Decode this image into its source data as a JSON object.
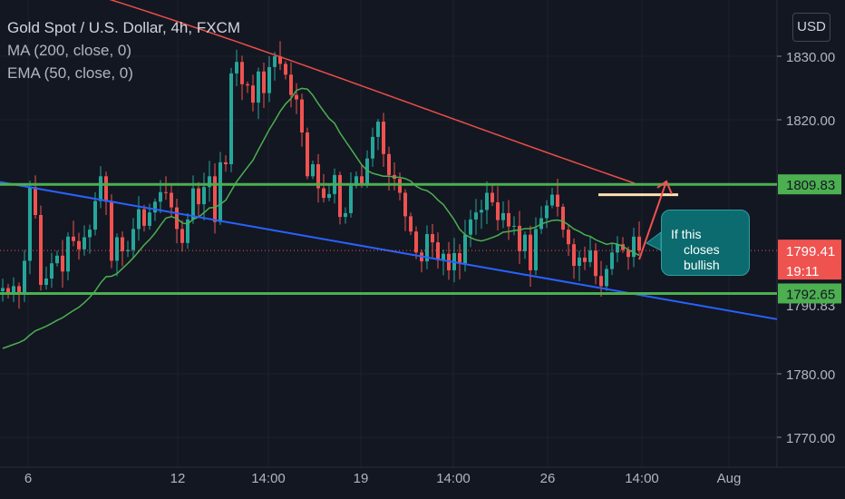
{
  "header": {
    "title": "Gold Spot / U.S. Dollar, 4h, FXCM",
    "indicator_1": "MA (200, close, 0)",
    "indicator_2": "EMA (50, close, 0)"
  },
  "currency_button": "USD",
  "annotation": {
    "line1": "If this",
    "line2": "closes bullish"
  },
  "colors": {
    "background": "#131722",
    "bull": "#26a69a",
    "bear": "#ef5350",
    "ma200": "#e94e47",
    "ema50": "#4caf50",
    "trendline": "#2962ff",
    "level": "#4caf50",
    "note_bg": "#0c6b6e"
  },
  "chart_data": {
    "type": "candlestick",
    "x_ticks": [
      "6",
      "12",
      "14:00",
      "19",
      "14:00",
      "26",
      "14:00",
      "Aug"
    ],
    "y_ticks": [
      "1830.00",
      "1820.00",
      "1780.00",
      "1770.00"
    ],
    "ylim": [
      1767.5,
      1835.5
    ],
    "n_bars": 118,
    "level_lines": [
      {
        "label": "1809.83",
        "value": 1809.83
      },
      {
        "label": "1792.65",
        "value": 1792.65
      }
    ],
    "last_price": {
      "label": "1799.41",
      "value": 1799.41,
      "countdown": "19:11"
    },
    "partial_label": "1790.83",
    "close": [
      1793.5,
      1792.8,
      1793.8,
      1792.6,
      1797.8,
      1809.4,
      1805.0,
      1794.0,
      1795.0,
      1797.4,
      1798.6,
      1796.1,
      1801.6,
      1800.9,
      1799.6,
      1801.5,
      1802.7,
      1807.2,
      1811.1,
      1807.1,
      1797.8,
      1801.5,
      1799.3,
      1799.5,
      1802.8,
      1805.9,
      1803.3,
      1805.4,
      1807.1,
      1808.6,
      1808.5,
      1806.2,
      1802.8,
      1800.6,
      1804.3,
      1809.2,
      1806.7,
      1809.4,
      1811.1,
      1803.9,
      1813.3,
      1813.0,
      1827.3,
      1829.1,
      1825.6,
      1825.4,
      1822.7,
      1827.6,
      1824.2,
      1828.3,
      1830.0,
      1828.8,
      1827.1,
      1823.9,
      1823.2,
      1818.0,
      1811.1,
      1813.0,
      1809.2,
      1807.7,
      1808.3,
      1811.3,
      1804.7,
      1805.3,
      1809.6,
      1811.1,
      1809.9,
      1813.9,
      1817.3,
      1819.7,
      1814.6,
      1811.3,
      1810.7,
      1808.5,
      1804.8,
      1802.4,
      1799.1,
      1797.7,
      1802.0,
      1800.7,
      1797.9,
      1798.9,
      1796.3,
      1799.0,
      1797.4,
      1801.9,
      1804.3,
      1805.4,
      1805.8,
      1808.5,
      1807.0,
      1804.2,
      1805.3,
      1803.2,
      1803.3,
      1799.3,
      1801.9,
      1796.3,
      1802.8,
      1804.5,
      1806.5,
      1808.2,
      1806.3,
      1802.7,
      1800.4,
      1797.0,
      1798.3,
      1797.6,
      1799.4,
      1795.4,
      1793.8,
      1796.5,
      1799.1,
      1800.4,
      1799.5,
      1798.4,
      1801.6,
      1799.4
    ]
  }
}
